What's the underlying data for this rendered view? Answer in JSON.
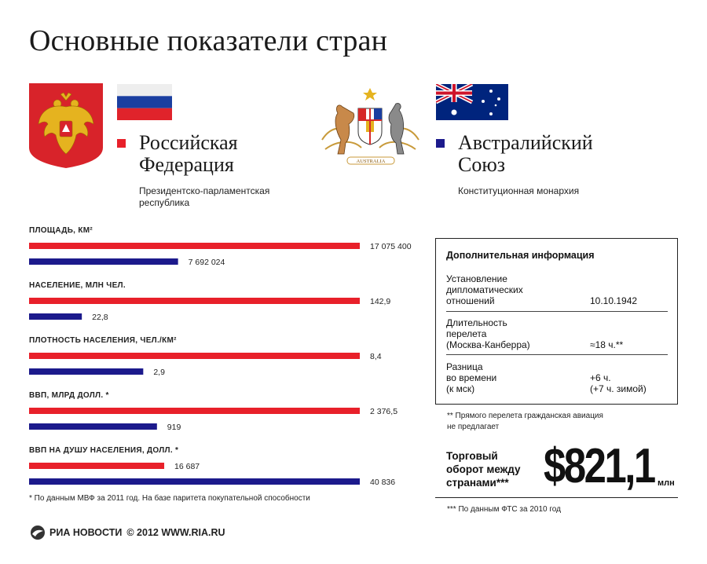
{
  "title": "Основные показатели стран",
  "countries": {
    "russia": {
      "name": "Российская\nФедерация",
      "government": "Президентско-парламентская\nреспублика",
      "color": "#e8202a"
    },
    "australia": {
      "name": "Австралийский\nСоюз",
      "government": "Конституционная монархия",
      "color": "#1c1a8c"
    }
  },
  "coat_of_arms_motto": "AUSTRALIA",
  "chart_data": {
    "type": "bar",
    "orientation": "horizontal",
    "series_names": [
      "Российская Федерация",
      "Австралийский Союз"
    ],
    "colors": [
      "#e8202a",
      "#1c1a8c"
    ],
    "categories": [
      {
        "label": "ПЛОЩАДЬ, КМ²",
        "values": [
          17075400,
          7692024
        ],
        "labels": [
          "17 075 400",
          "7 692 024"
        ]
      },
      {
        "label": "НАСЕЛЕНИЕ, МЛН ЧЕЛ.",
        "values": [
          142.9,
          22.8
        ],
        "labels": [
          "142,9",
          "22,8"
        ]
      },
      {
        "label": "ПЛОТНОСТЬ НАСЕЛЕНИЯ, ЧЕЛ./КМ²",
        "values": [
          8.4,
          2.9
        ],
        "labels": [
          "8,4",
          "2,9"
        ]
      },
      {
        "label": "ВВП, МЛРД ДОЛЛ. *",
        "values": [
          2376.5,
          919
        ],
        "labels": [
          "2 376,5",
          "919"
        ]
      },
      {
        "label": "ВВП НА ДУШУ НАСЕЛЕНИЯ, ДОЛЛ. *",
        "values": [
          16687,
          40836
        ],
        "labels": [
          "16 687",
          "40 836"
        ]
      }
    ]
  },
  "footnotes": {
    "imf": "* По данным МВФ за 2011 год. На базе паритета покупательной способности",
    "flight": "** Прямого перелета гражданская авиация\n    не предлагает",
    "fts": "*** По данным ФТС за 2010 год"
  },
  "info": {
    "title": "Дополнительная информация",
    "rows": [
      {
        "label": "Установление\nдипломатических\nотношений",
        "value": "10.10.1942"
      },
      {
        "label": "Длительность\nперелета\n(Москва-Канберра)",
        "value": "≈18 ч.**"
      },
      {
        "label": "Разница\nво времени\n(к мск)",
        "value": "+6 ч.\n(+7 ч. зимой)"
      }
    ]
  },
  "trade": {
    "label": "Торговый\nоборот между\nстранами***",
    "value": "$821,1",
    "unit": "млн"
  },
  "logo": {
    "brand": "РИА НОВОСТИ",
    "copyright": "© 2012 WWW.RIA.RU"
  }
}
